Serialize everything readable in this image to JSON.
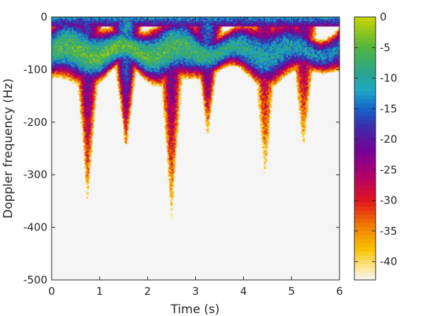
{
  "chart_data": {
    "type": "heatmap",
    "title": "",
    "xlabel": "Time (s)",
    "ylabel": "Doppler frequency (Hz)",
    "xlim": [
      0,
      6
    ],
    "ylim": [
      -500,
      0
    ],
    "x_ticks": [
      "0",
      "1",
      "2",
      "3",
      "4",
      "5",
      "6"
    ],
    "y_ticks": [
      "0",
      "-100",
      "-200",
      "-300",
      "-400",
      "-500"
    ],
    "y_tick_values": [
      0,
      -100,
      -200,
      -300,
      -400,
      -500
    ],
    "colorbar": {
      "clim": [
        -43,
        0
      ],
      "ticks": [
        "0",
        "-5",
        "-10",
        "-15",
        "-20",
        "-25",
        "-30",
        "-35",
        "-40"
      ],
      "tick_values": [
        0,
        -5,
        -10,
        -15,
        -20,
        -25,
        -30,
        -35,
        -40
      ],
      "colormap_stops": [
        {
          "value": -43,
          "color": "#f5f5f5"
        },
        {
          "value": -41,
          "color": "#fbe79a"
        },
        {
          "value": -38,
          "color": "#f8c300"
        },
        {
          "value": -34,
          "color": "#f07a00"
        },
        {
          "value": -30,
          "color": "#e0151e"
        },
        {
          "value": -26,
          "color": "#b4006a"
        },
        {
          "value": -22,
          "color": "#7a0096"
        },
        {
          "value": -18,
          "color": "#3c2aa8"
        },
        {
          "value": -15,
          "color": "#1464c8"
        },
        {
          "value": -12,
          "color": "#1fa7c8"
        },
        {
          "value": -9,
          "color": "#2ba58c"
        },
        {
          "value": -5,
          "color": "#4fb440"
        },
        {
          "value": 0,
          "color": "#c9d400"
        }
      ]
    },
    "background_level_db": -43,
    "doppler_ridges": [
      {
        "t": 0.75,
        "f_min": -335,
        "peak_db": -18
      },
      {
        "t": 1.55,
        "f_min": -230,
        "peak_db": -12
      },
      {
        "t": 2.5,
        "f_min": -375,
        "peak_db": -20
      },
      {
        "t": 3.25,
        "f_min": -210,
        "peak_db": -15
      },
      {
        "t": 4.45,
        "f_min": -325,
        "peak_db": -24
      },
      {
        "t": 5.25,
        "f_min": -255,
        "peak_db": -22
      }
    ],
    "body_band": {
      "f_center": -65,
      "f_halfwidth": 40,
      "peak_db": -4
    }
  }
}
